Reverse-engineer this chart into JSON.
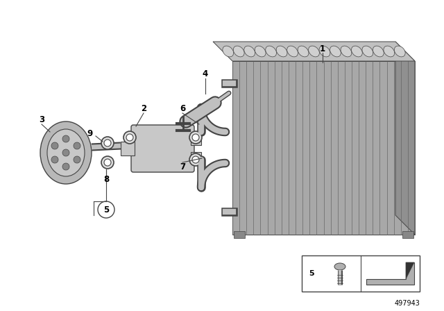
{
  "background_color": "#ffffff",
  "diagram_number": "497943",
  "line_color": "#444444",
  "evap_front_color": "#aaaaaa",
  "evap_fin_color": "#888888",
  "evap_top_color": "#bbbbbb",
  "evap_right_color": "#999999",
  "pipe_color": "#c0c0c0",
  "valve_color": "#c8c8c8",
  "cap_color": "#c0c0c0",
  "label_font_size": 8.5
}
